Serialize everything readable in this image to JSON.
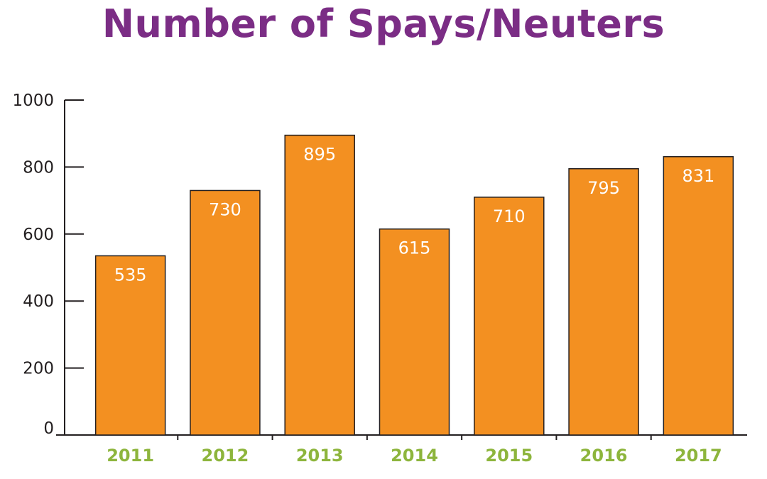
{
  "colors": {
    "title": "#7b2d85",
    "bar_fill": "#f39021",
    "bar_stroke": "#231f20",
    "axis": "#231f20",
    "xtick": "#8db53c",
    "data_label": "#ffffff"
  },
  "chart_data": {
    "type": "bar",
    "title": "Number of Spays/Neuters",
    "xlabel": "",
    "ylabel": "",
    "categories": [
      "2011",
      "2012",
      "2013",
      "2014",
      "2015",
      "2016",
      "2017"
    ],
    "values": [
      535,
      730,
      895,
      615,
      710,
      795,
      831
    ],
    "data_labels": [
      "535",
      "730",
      "895",
      "615",
      "710",
      "795",
      "831"
    ],
    "ylim": [
      0,
      1000
    ],
    "yticks": [
      0,
      200,
      400,
      600,
      800,
      1000
    ],
    "ytick_labels": [
      "0",
      "200",
      "400",
      "600",
      "800",
      "1000"
    ],
    "grid": false,
    "legend": "none"
  }
}
